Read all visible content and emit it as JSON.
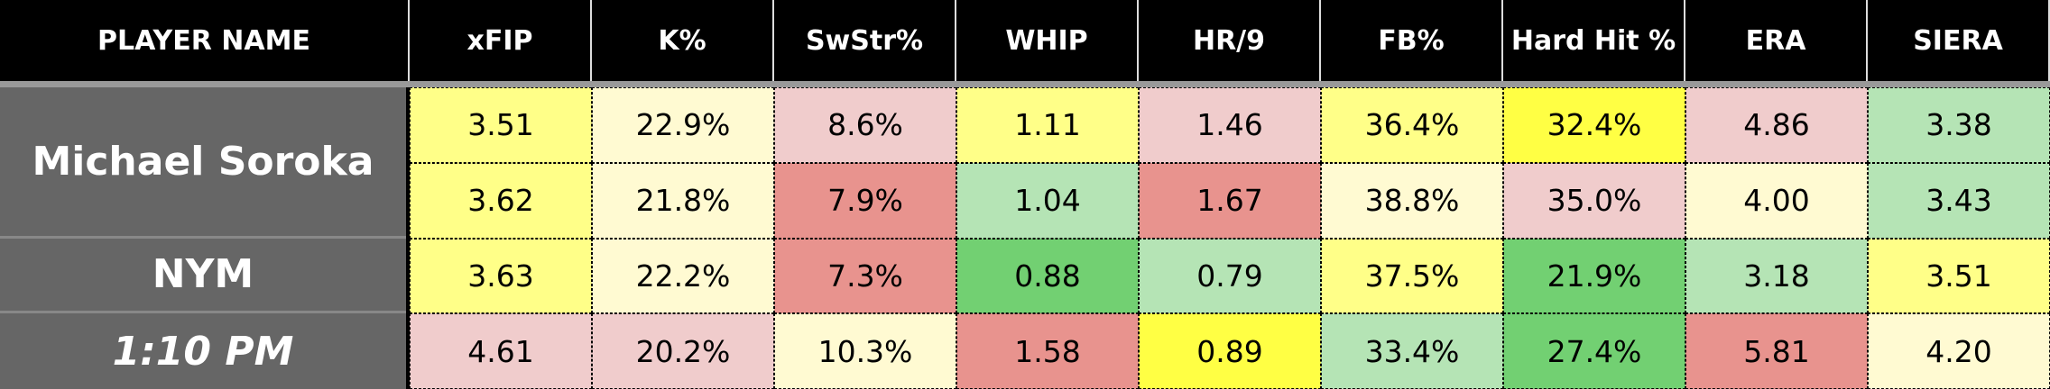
{
  "header": {
    "columns": [
      "PLAYER NAME",
      "xFIP",
      "K%",
      "SwStr%",
      "WHIP",
      "HR/9",
      "FB%",
      "Hard Hit %",
      "ERA",
      "SIERA"
    ]
  },
  "player": {
    "name": "Michael Soroka",
    "team": "NYM",
    "time": "1:10 PM"
  },
  "table": {
    "rows": [
      [
        "3.51",
        "22.9%",
        "8.6%",
        "1.11",
        "1.46",
        "36.4%",
        "32.4%",
        "4.86",
        "3.38"
      ],
      [
        "3.62",
        "21.8%",
        "7.9%",
        "1.04",
        "1.67",
        "38.8%",
        "35.0%",
        "4.00",
        "3.43"
      ],
      [
        "3.63",
        "22.2%",
        "7.3%",
        "0.88",
        "0.79",
        "37.5%",
        "21.9%",
        "3.18",
        "3.51"
      ],
      [
        "4.61",
        "20.2%",
        "10.3%",
        "1.58",
        "0.89",
        "33.4%",
        "27.4%",
        "5.81",
        "4.20"
      ]
    ],
    "colors": [
      [
        "#ffff88",
        "#fffad2",
        "#f0cccc",
        "#ffff88",
        "#f0cccc",
        "#ffff88",
        "#ffff44",
        "#f0cccc",
        "#b5e4b5"
      ],
      [
        "#ffff88",
        "#fffad2",
        "#e8938e",
        "#b5e4b5",
        "#e8938e",
        "#fffad2",
        "#f0cccc",
        "#fffad2",
        "#b5e4b5"
      ],
      [
        "#ffff88",
        "#fffad2",
        "#e8938e",
        "#72d072",
        "#b5e4b5",
        "#ffff88",
        "#72d072",
        "#b5e4b5",
        "#ffff88"
      ],
      [
        "#f0cccc",
        "#f0cccc",
        "#fffad2",
        "#e8938e",
        "#ffff44",
        "#b5e4b5",
        "#72d072",
        "#e8938e",
        "#fffad2"
      ]
    ]
  }
}
